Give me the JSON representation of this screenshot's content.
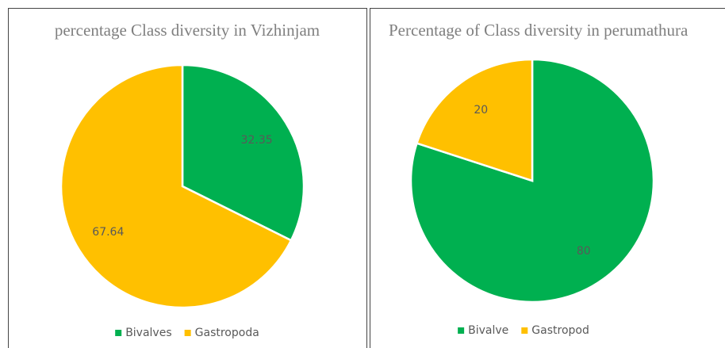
{
  "chart_data": [
    {
      "type": "pie",
      "title": "percentage Class diversity  in Vizhinjam",
      "categories": [
        "Bivalves",
        "Gastropoda"
      ],
      "values": [
        32.35,
        67.64
      ],
      "colors": [
        "#00b050",
        "#ffc000"
      ],
      "legend": "bottom"
    },
    {
      "type": "pie",
      "title": "Percentage of Class diversity in perumathura",
      "categories": [
        "Bivalve",
        "Gastropod"
      ],
      "values": [
        80,
        20
      ],
      "colors": [
        "#00b050",
        "#ffc000"
      ],
      "legend": "bottom"
    }
  ]
}
